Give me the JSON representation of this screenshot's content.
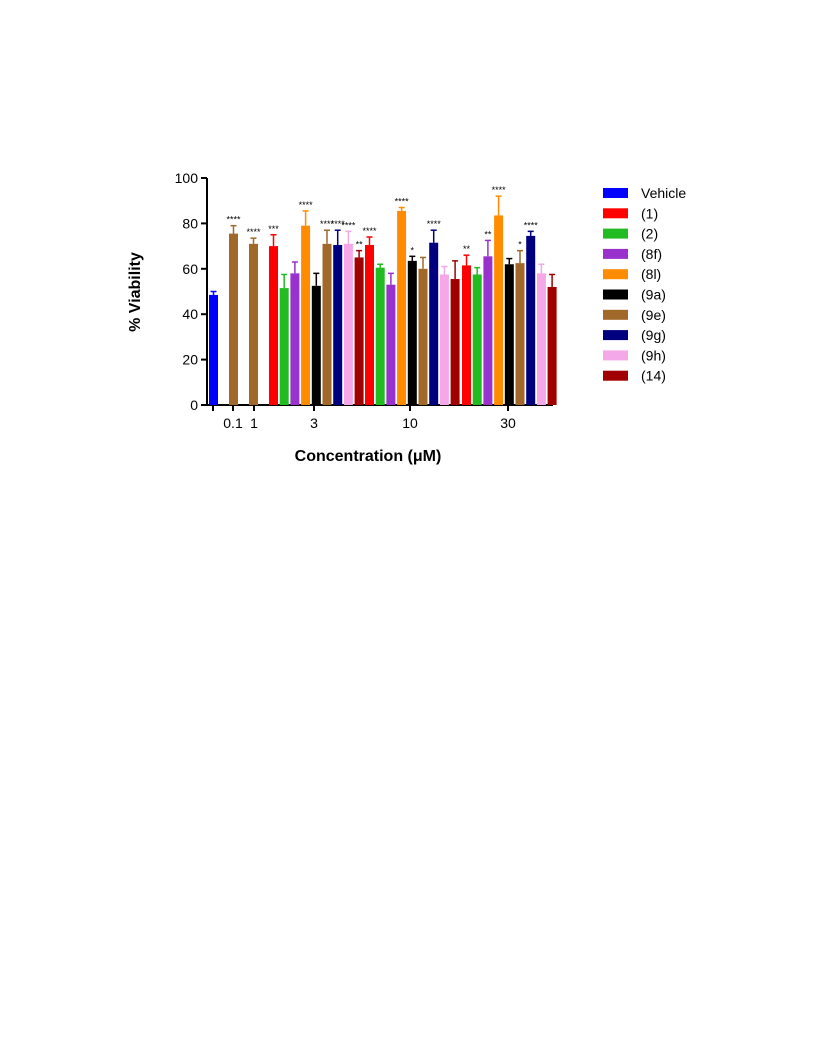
{
  "chart_data": {
    "type": "bar",
    "xlabel": "Concentration (μM)",
    "ylabel": "% Viability",
    "ylim": [
      0,
      100
    ],
    "yticks": [
      "0",
      "20",
      "40",
      "60",
      "80",
      "100"
    ],
    "grid": false,
    "legend_position": "right",
    "groups": [
      {
        "label": "",
        "bars": [
          {
            "series": "Vehicle",
            "value": 48.5,
            "error": 1.5,
            "sig": ""
          }
        ]
      },
      {
        "label": "0.1",
        "bars": [
          {
            "series": "(9e)",
            "value": 75.5,
            "error": 3.5,
            "sig": "****"
          }
        ]
      },
      {
        "label": "1",
        "bars": [
          {
            "series": "(9e)",
            "value": 71,
            "error": 2.5,
            "sig": "****"
          }
        ]
      },
      {
        "label": "3",
        "bars": [
          {
            "series": "(1)",
            "value": 70,
            "error": 5,
            "sig": "***"
          },
          {
            "series": "(2)",
            "value": 51.5,
            "error": 6,
            "sig": ""
          },
          {
            "series": "(8f)",
            "value": 58,
            "error": 5,
            "sig": ""
          },
          {
            "series": "(8l)",
            "value": 79,
            "error": 6.5,
            "sig": "****"
          },
          {
            "series": "(9a)",
            "value": 52.5,
            "error": 5.5,
            "sig": ""
          },
          {
            "series": "(9e)",
            "value": 71,
            "error": 6,
            "sig": "****"
          },
          {
            "series": "(9g)",
            "value": 70.5,
            "error": 6.5,
            "sig": "****"
          },
          {
            "series": "(9h)",
            "value": 71,
            "error": 5.5,
            "sig": "****"
          },
          {
            "series": "(14)",
            "value": 65,
            "error": 3,
            "sig": "**"
          }
        ]
      },
      {
        "label": "10",
        "bars": [
          {
            "series": "(1)",
            "value": 70.5,
            "error": 3.5,
            "sig": "****"
          },
          {
            "series": "(2)",
            "value": 60.5,
            "error": 1.5,
            "sig": ""
          },
          {
            "series": "(8f)",
            "value": 53,
            "error": 5,
            "sig": ""
          },
          {
            "series": "(8l)",
            "value": 85.5,
            "error": 1.5,
            "sig": "****"
          },
          {
            "series": "(9a)",
            "value": 63.5,
            "error": 2,
            "sig": "*"
          },
          {
            "series": "(9e)",
            "value": 60,
            "error": 5,
            "sig": ""
          },
          {
            "series": "(9g)",
            "value": 71.5,
            "error": 5.5,
            "sig": "****"
          },
          {
            "series": "(9h)",
            "value": 57.5,
            "error": 3.5,
            "sig": ""
          },
          {
            "series": "(14)",
            "value": 55.5,
            "error": 8,
            "sig": ""
          }
        ]
      },
      {
        "label": "30",
        "bars": [
          {
            "series": "(1)",
            "value": 61.5,
            "error": 4.5,
            "sig": "**"
          },
          {
            "series": "(2)",
            "value": 57.5,
            "error": 3,
            "sig": ""
          },
          {
            "series": "(8f)",
            "value": 65.5,
            "error": 7,
            "sig": "**"
          },
          {
            "series": "(8l)",
            "value": 83.5,
            "error": 8.5,
            "sig": "****"
          },
          {
            "series": "(9a)",
            "value": 62,
            "error": 2.5,
            "sig": ""
          },
          {
            "series": "(9e)",
            "value": 62.5,
            "error": 5.5,
            "sig": "*"
          },
          {
            "series": "(9g)",
            "value": 74.5,
            "error": 2,
            "sig": "****"
          },
          {
            "series": "(9h)",
            "value": 58,
            "error": 4,
            "sig": ""
          },
          {
            "series": "(14)",
            "value": 52,
            "error": 5.5,
            "sig": ""
          }
        ]
      }
    ],
    "legend": [
      {
        "name": "Vehicle",
        "color": "#0000ff"
      },
      {
        "name": "(1)",
        "color": "#ff0000"
      },
      {
        "name": "(2)",
        "color": "#22bb22"
      },
      {
        "name": "(8f)",
        "color": "#9932cc"
      },
      {
        "name": "(8l)",
        "color": "#ff8c00"
      },
      {
        "name": "(9a)",
        "color": "#000000"
      },
      {
        "name": "(9e)",
        "color": "#a0692a"
      },
      {
        "name": "(9g)",
        "color": "#00007f"
      },
      {
        "name": "(9h)",
        "color": "#f4a8e8"
      },
      {
        "name": "(14)",
        "color": "#a00000"
      }
    ]
  }
}
